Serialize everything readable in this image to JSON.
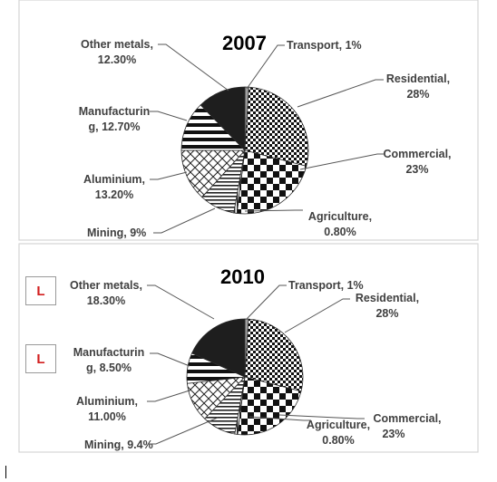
{
  "chart_data": [
    {
      "type": "pie",
      "title": "2007",
      "slices": [
        {
          "label": "Transport",
          "value": 1,
          "text": "Transport, 1%",
          "pattern": "solid-gray"
        },
        {
          "label": "Residential",
          "value": 28,
          "text": "Residential, 28%",
          "pattern": "small-checker"
        },
        {
          "label": "Commercial",
          "value": 23,
          "text": "Commercial, 23%",
          "pattern": "large-checker"
        },
        {
          "label": "Agriculture",
          "value": 0.8,
          "text": "Agriculture, 0.80%",
          "pattern": "vertical"
        },
        {
          "label": "Mining",
          "value": 9,
          "text": "Mining, 9%",
          "pattern": "thin-horizontal"
        },
        {
          "label": "Aluminium",
          "value": 13.2,
          "text": "Aluminium, 13.20%",
          "pattern": "crosshatch"
        },
        {
          "label": "Manufacturing",
          "value": 12.7,
          "text": "Manufacturin g, 12.70%",
          "pattern": "thick-horizontal"
        },
        {
          "label": "Other metals",
          "value": 12.3,
          "text": "Other metals, 12.30%",
          "pattern": "solid-dark"
        }
      ]
    },
    {
      "type": "pie",
      "title": "2010",
      "slices": [
        {
          "label": "Transport",
          "value": 1,
          "text": "Transport, 1%",
          "pattern": "solid-gray"
        },
        {
          "label": "Residential",
          "value": 28,
          "text": "Residential, 28%",
          "pattern": "small-checker"
        },
        {
          "label": "Commercial",
          "value": 23,
          "text": "Commercial, 23%",
          "pattern": "large-checker"
        },
        {
          "label": "Agriculture",
          "value": 0.8,
          "text": "Agriculture, 0.80%",
          "pattern": "vertical"
        },
        {
          "label": "Mining",
          "value": 9.4,
          "text": "Mining, 9.4%",
          "pattern": "thin-horizontal"
        },
        {
          "label": "Aluminium",
          "value": 11.0,
          "text": "Aluminium, 11.00%",
          "pattern": "crosshatch"
        },
        {
          "label": "Manufacturing",
          "value": 8.5,
          "text": "Manufacturin g, 8.50%",
          "pattern": "thick-horizontal"
        },
        {
          "label": "Other metals",
          "value": 18.3,
          "text": "Other metals, 18.30%",
          "pattern": "solid-dark"
        }
      ]
    }
  ],
  "labels": {
    "p2007": {
      "other_metals_1": "Other metals,",
      "other_metals_2": "12.30%",
      "transport": "Transport, 1%",
      "residential_1": "Residential,",
      "residential_2": "28%",
      "manufacturing_1": "Manufacturin",
      "manufacturing_2": "g, 12.70%",
      "commercial_1": "Commercial,",
      "commercial_2": "23%",
      "aluminium_1": "Aluminium,",
      "aluminium_2": "13.20%",
      "agriculture_1": "Agriculture,",
      "agriculture_2": "0.80%",
      "mining": "Mining, 9%"
    },
    "p2010": {
      "other_metals_1": "Other metals,",
      "other_metals_2": "18.30%",
      "transport": "Transport, 1%",
      "residential_1": "Residential,",
      "residential_2": "28%",
      "manufacturing_1": "Manufacturin",
      "manufacturing_2": "g, 8.50%",
      "aluminium_1": "Aluminium,",
      "aluminium_2": "11.00%",
      "agriculture_1": "Agriculture,",
      "agriculture_2": "0.80%",
      "commercial_1": "Commercial,",
      "commercial_2": "23%",
      "mining": "Mining, 9.4%"
    }
  },
  "flags": [
    "L",
    "L"
  ],
  "colors": {
    "flag_text": "#d21f1f",
    "frame": "#d4d4d4",
    "label_text": "#404040",
    "slice_dark": "#1e1e1e",
    "slice_gray": "#a0a0a0"
  }
}
